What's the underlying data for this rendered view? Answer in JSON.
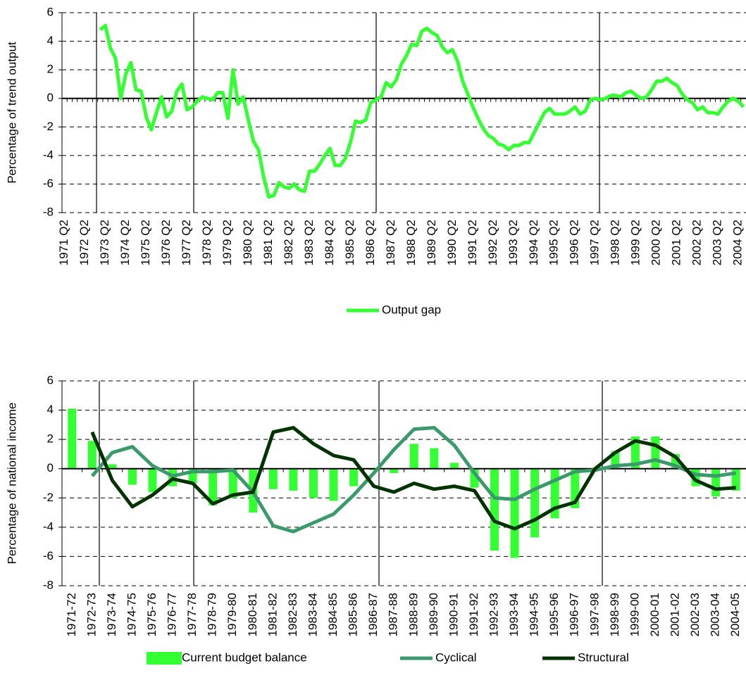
{
  "chart_data": [
    {
      "type": "line",
      "ylabel": "Percentage of trend output",
      "categories": [
        "1971 Q2",
        null,
        null,
        null,
        "1972 Q2",
        null,
        null,
        null,
        "1973 Q2",
        null,
        null,
        null,
        "1974 Q2",
        null,
        null,
        null,
        "1975 Q2",
        null,
        null,
        null,
        "1976 Q2",
        null,
        null,
        null,
        "1977 Q2",
        null,
        null,
        null,
        "1978 Q2",
        null,
        null,
        null,
        "1979 Q2",
        null,
        null,
        null,
        "1980 Q2",
        null,
        null,
        null,
        "1981 Q2",
        null,
        null,
        null,
        "1982 Q2",
        null,
        null,
        null,
        "1983 Q2",
        null,
        null,
        null,
        "1984 Q2",
        null,
        null,
        null,
        "1985 Q2",
        null,
        null,
        null,
        "1986 Q2",
        null,
        null,
        null,
        "1987 Q2",
        null,
        null,
        null,
        "1988 Q2",
        null,
        null,
        null,
        "1989 Q2",
        null,
        null,
        null,
        "1990 Q2",
        null,
        null,
        null,
        "1991 Q2",
        null,
        null,
        null,
        "1992 Q2",
        null,
        null,
        null,
        "1993 Q2",
        null,
        null,
        null,
        "1994 Q2",
        null,
        null,
        null,
        "1995 Q2",
        null,
        null,
        null,
        "1996 Q2",
        null,
        null,
        null,
        "1997 Q2",
        null,
        null,
        null,
        "1998 Q2",
        null,
        null,
        null,
        "1999 Q2",
        null,
        null,
        null,
        "2000 Q2",
        null,
        null,
        null,
        "2001 Q2",
        null,
        null,
        null,
        "2002 Q2",
        null,
        null,
        null,
        "2003 Q2",
        null,
        null,
        null,
        "2004 Q2",
        null
      ],
      "series": [
        {
          "name": "Output gap",
          "color": "#33ff33",
          "values": [
            null,
            null,
            null,
            null,
            null,
            null,
            null,
            4.8,
            5.1,
            3.5,
            2.8,
            0.0,
            1.7,
            2.5,
            0.6,
            0.5,
            -1.3,
            -2.2,
            -1.0,
            0.1,
            -1.3,
            -0.9,
            0.5,
            1.0,
            -0.8,
            -0.6,
            -0.2,
            0.1,
            0.0,
            -0.1,
            0.4,
            0.4,
            -1.4,
            2.0,
            -0.4,
            0.1,
            -1.5,
            -3.0,
            -3.6,
            -5.5,
            -6.9,
            -6.8,
            -5.9,
            -6.2,
            -6.3,
            -6.0,
            -6.4,
            -6.5,
            -5.1,
            -5.1,
            -4.6,
            -4.0,
            -3.5,
            -4.7,
            -4.7,
            -4.2,
            -3.1,
            -1.6,
            -1.7,
            -1.5,
            -0.3,
            -0.1,
            0.1,
            1.1,
            0.8,
            1.3,
            2.4,
            3.0,
            3.8,
            3.7,
            4.7,
            4.9,
            4.6,
            4.4,
            3.6,
            3.2,
            3.4,
            2.6,
            1.2,
            0.3,
            -0.6,
            -1.4,
            -2.1,
            -2.6,
            -2.8,
            -3.2,
            -3.3,
            -3.6,
            -3.3,
            -3.3,
            -3.1,
            -3.1,
            -2.4,
            -1.7,
            -1.0,
            -0.7,
            -1.1,
            -1.1,
            -1.1,
            -0.9,
            -0.6,
            -1.1,
            -0.9,
            -0.1,
            0.0,
            -0.1,
            0.0,
            0.2,
            0.2,
            0.1,
            0.4,
            0.5,
            0.2,
            0.0,
            0.1,
            0.6,
            1.2,
            1.2,
            1.4,
            1.1,
            0.9,
            0.3,
            -0.1,
            -0.3,
            -0.8,
            -0.6,
            -1.0,
            -1.0,
            -1.1,
            -0.6,
            -0.2,
            0.0,
            -0.2,
            -0.6
          ]
        }
      ],
      "ylim": [
        -8,
        6
      ],
      "yticks": [
        -8,
        -6,
        -4,
        -2,
        0,
        2,
        4,
        6
      ],
      "grid": true
    },
    {
      "type": "bar",
      "ylabel": "Percentage of national income",
      "categories": [
        "1971-72",
        "1972-73",
        "1973-74",
        "1974-75",
        "1975-76",
        "1976-77",
        "1977-78",
        "1978-79",
        "1979-80",
        "1980-81",
        "1981-82",
        "1982-83",
        "1983-84",
        "1984-85",
        "1985-86",
        "1986-87",
        "1987-88",
        "1988-89",
        "1989-90",
        "1990-91",
        "1991-92",
        "1992-93",
        "1993-94",
        "1994-95",
        "1995-96",
        "1996-97",
        "1997-98",
        "1998-99",
        "1999-00",
        "2000-01",
        "2001-02",
        "2002-03",
        "2003-04",
        "2004-05"
      ],
      "series": [
        {
          "name": "Current budget balance",
          "type": "bar",
          "color": "#33ff33",
          "values": [
            4.1,
            1.9,
            0.3,
            -1.1,
            -1.6,
            -1.2,
            -1.0,
            -2.5,
            -2.0,
            -3.0,
            -1.4,
            -1.5,
            -2.0,
            -2.2,
            -1.2,
            -0.1,
            -0.3,
            1.7,
            1.4,
            0.4,
            -1.3,
            -5.6,
            -6.1,
            -4.7,
            -3.4,
            -2.7,
            0.0,
            1.2,
            2.2,
            2.2,
            1.0,
            -1.2,
            -1.9,
            -1.5
          ]
        },
        {
          "name": "Cyclical",
          "type": "line",
          "color": "#3a9a6b",
          "values": [
            null,
            -0.5,
            1.1,
            1.5,
            0.2,
            -0.5,
            -0.2,
            -0.2,
            -0.1,
            -1.6,
            -3.9,
            -4.3,
            -3.7,
            -3.1,
            -1.8,
            -0.3,
            1.3,
            2.7,
            2.8,
            1.6,
            -0.3,
            -2.0,
            -2.1,
            -1.4,
            -0.8,
            -0.2,
            -0.1,
            0.2,
            0.3,
            0.6,
            0.2,
            -0.4,
            -0.5,
            -0.3
          ]
        },
        {
          "name": "Structural",
          "type": "line",
          "color": "#003300",
          "values": [
            null,
            2.5,
            -0.8,
            -2.6,
            -1.8,
            -0.7,
            -1.0,
            -2.4,
            -1.8,
            -1.6,
            2.5,
            2.8,
            1.7,
            0.9,
            0.6,
            -1.2,
            -1.6,
            -1.0,
            -1.4,
            -1.2,
            -1.5,
            -3.6,
            -4.1,
            -3.5,
            -2.7,
            -2.3,
            0.0,
            1.1,
            1.9,
            1.6,
            0.8,
            -0.8,
            -1.4,
            -1.3
          ]
        }
      ],
      "ylim": [
        -8,
        6
      ],
      "yticks": [
        -8,
        -6,
        -4,
        -2,
        0,
        2,
        4,
        6
      ],
      "grid": true
    }
  ]
}
